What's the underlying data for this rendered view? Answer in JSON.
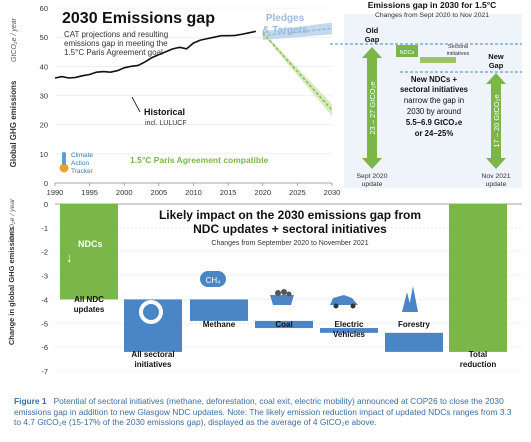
{
  "chart_data": [
    {
      "type": "line",
      "title": "2030 Emissions gap",
      "subtitle": "CAT projections and resulting emissions gap in meeting the 1.5°C Paris Agreement goal",
      "ylabel": "Global GHG emissions",
      "yunit": "GtCO₂e / year",
      "xlim": [
        1990,
        2030
      ],
      "ylim": [
        0,
        60
      ],
      "xticks": [
        "1990",
        "1995",
        "2000",
        "2005",
        "2010",
        "2015",
        "2020",
        "2025",
        "2030"
      ],
      "yticks": [
        "0",
        "10",
        "20",
        "30",
        "40",
        "50",
        "60"
      ],
      "series": [
        {
          "name": "Historical",
          "note": "incl. LULUCF",
          "x": [
            1990,
            1991,
            1992,
            1993,
            1994,
            1995,
            1996,
            1997,
            1998,
            1999,
            2000,
            2001,
            2002,
            2003,
            2004,
            2005,
            2006,
            2007,
            2008,
            2009,
            2010,
            2011,
            2012,
            2013,
            2014,
            2015,
            2016,
            2017,
            2018,
            2019
          ],
          "y": [
            36,
            36.5,
            36,
            36.2,
            36.8,
            37.2,
            38,
            38.2,
            38,
            38.5,
            39.5,
            40,
            40.3,
            41.5,
            43,
            44,
            45,
            46,
            46.5,
            46,
            48,
            49,
            49.5,
            50,
            50.5,
            50.5,
            50.6,
            51,
            51.5,
            52
          ]
        }
      ],
      "bands": [
        {
          "name": "Pledges & Targets",
          "x": [
            2020,
            2030
          ],
          "low": [
            49,
            51
          ],
          "high": [
            52,
            55
          ]
        },
        {
          "name": "1.5°C Paris Agreement compatible",
          "x": [
            2020,
            2030
          ],
          "low": [
            51,
            23
          ],
          "high": [
            52,
            27
          ]
        }
      ],
      "gaps": [
        {
          "label": "Old Gap",
          "sublabel": "Sept 2020 update",
          "value_label": "23 – 27 GtCO₂e"
        },
        {
          "label": "New Gap",
          "sublabel": "Nov 2021 update",
          "value_label": "17 – 20 GtCO₂e"
        }
      ],
      "inset_title": "Emissions gap in 2030 for 1.5°C",
      "inset_subtitle": "Changes from Sept 2020 to Nov 2021",
      "inset_labels": {
        "ndcs": "NDCs",
        "sectoral": "Sectoral initiatives"
      },
      "inset_text": [
        "New NDCs +",
        "sectoral initiatives",
        "narrow the gap in",
        "2030 by around",
        "5.5–6.9 GtCO₂e",
        "or 24–25%"
      ],
      "logo_text": [
        "Climate",
        "Action",
        "Tracker"
      ]
    },
    {
      "type": "bar",
      "title": "Likely impact on the 2030 emissions gap from NDC updates + sectoral initiatives",
      "subtitle": "Changes from September 2020 to November 2021",
      "ylabel": "Change in global GHG emissions",
      "yunit": "GtCO₂e / year",
      "ylim": [
        -7,
        0
      ],
      "yticks": [
        "0",
        "-1",
        "-2",
        "-3",
        "-4",
        "-5",
        "-6",
        "-7"
      ],
      "categories": [
        "All NDC updates",
        "All sectoral initiatives",
        "Methane",
        "Coal",
        "Electric Vehicles",
        "Forestry",
        "Total reduction"
      ],
      "start": [
        0,
        -4.0,
        -4.0,
        -4.9,
        -5.2,
        -5.4,
        0
      ],
      "end": [
        -4.0,
        -6.2,
        -4.9,
        -5.2,
        -5.4,
        -6.2,
        -6.2
      ],
      "bar_labels": {
        "ndcs": "NDCs",
        "methane_formula": "CH₄"
      }
    }
  ],
  "caption": {
    "lead": "Figure 1",
    "text": "Potential of sectoral initiatives (methane, deforestation, coal exit, electric mobility) announced at COP26 to close the 2030 emissions gap in addition to new Glasgow NDC updates. Note: The likely emission reduction impact of updated NDCs ranges from 3.3 to 4.7 GtCO₂e (15-17% of the 2030 emissions gap), displayed as the average of 4 GtCO₂e above."
  },
  "colors": {
    "green": "#7ab648",
    "light_green": "#cfe6b0",
    "blue": "#4a86c5",
    "pale_blue": "#cfdff0",
    "inset_bg": "#eef4fa",
    "band_blue": "#b9d2ea",
    "axis_text": "#333333"
  }
}
